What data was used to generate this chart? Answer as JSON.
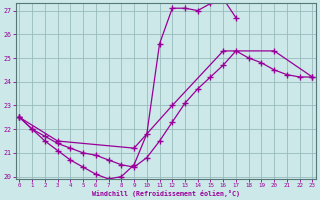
{
  "xlabel": "Windchill (Refroidissement éolien,°C)",
  "bg_color": "#cce8e8",
  "line_color": "#990099",
  "grid_color": "#99bbbb",
  "ylim": [
    20,
    27
  ],
  "xlim": [
    0,
    23
  ],
  "yticks": [
    20,
    21,
    22,
    23,
    24,
    25,
    26,
    27
  ],
  "xticks": [
    0,
    1,
    2,
    3,
    4,
    5,
    6,
    7,
    8,
    9,
    10,
    11,
    12,
    13,
    14,
    15,
    16,
    17,
    18,
    19,
    20,
    21,
    22,
    23
  ],
  "curve_a_x": [
    0,
    1,
    2,
    3,
    4,
    5,
    6,
    7,
    8,
    9,
    10,
    11,
    12,
    13,
    14,
    15,
    16,
    17
  ],
  "curve_a_y": [
    22.5,
    22.0,
    21.5,
    21.1,
    20.7,
    20.4,
    20.1,
    19.9,
    20.0,
    20.5,
    21.8,
    25.6,
    27.1,
    27.1,
    27.0,
    27.3,
    27.5,
    26.7
  ],
  "curve_b_x": [
    0,
    3,
    9,
    12,
    16,
    20,
    23
  ],
  "curve_b_y": [
    22.5,
    21.5,
    21.2,
    23.0,
    25.3,
    25.3,
    24.2
  ],
  "curve_c_x": [
    0,
    1,
    2,
    3,
    4,
    5,
    6,
    7,
    8,
    9,
    10,
    11,
    12,
    13,
    14,
    15,
    16,
    17,
    18,
    19,
    20,
    21,
    22,
    23
  ],
  "curve_c_y": [
    22.5,
    22.0,
    21.7,
    21.4,
    21.2,
    21.0,
    20.9,
    20.7,
    20.5,
    20.4,
    20.8,
    21.5,
    22.3,
    23.1,
    23.7,
    24.2,
    24.7,
    25.3,
    25.0,
    24.8,
    24.5,
    24.3,
    24.2,
    24.2
  ]
}
